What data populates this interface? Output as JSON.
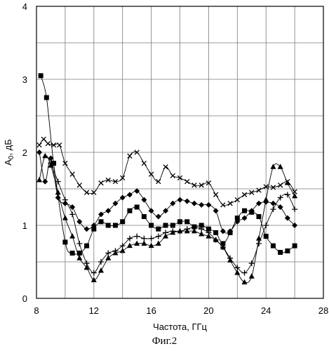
{
  "figure": {
    "caption": "Фиг.2"
  },
  "chart_data": {
    "type": "line",
    "xlabel": "Частота, ГГц",
    "ylabel": {
      "main": "A",
      "sub": "0",
      "rest": ", дБ"
    },
    "xlim": [
      8,
      28
    ],
    "ylim": [
      0,
      4
    ],
    "xticks": [
      8,
      12,
      16,
      20,
      24,
      28
    ],
    "yticks": [
      0,
      1,
      2,
      3,
      4
    ],
    "grid": true,
    "legend": "none",
    "series": [
      {
        "marker": "x",
        "x": [
          8.2,
          8.5,
          8.8,
          9.2,
          9.6,
          10.0,
          10.5,
          11.0,
          11.5,
          12.0,
          12.5,
          13.0,
          13.5,
          14.0,
          14.5,
          15.0,
          15.5,
          16.0,
          16.5,
          17.0,
          17.5,
          18.0,
          18.5,
          19.0,
          19.5,
          20.0,
          20.5,
          21.0,
          21.5,
          22.0,
          22.5,
          23.0,
          23.5,
          24.0,
          24.5,
          25.0,
          25.5,
          26.0
        ],
        "y": [
          2.1,
          2.18,
          2.12,
          2.1,
          2.1,
          1.85,
          1.7,
          1.55,
          1.45,
          1.45,
          1.58,
          1.62,
          1.6,
          1.65,
          1.95,
          2.0,
          1.85,
          1.7,
          1.6,
          1.8,
          1.68,
          1.65,
          1.6,
          1.55,
          1.55,
          1.58,
          1.42,
          1.28,
          1.3,
          1.35,
          1.42,
          1.45,
          1.48,
          1.53,
          1.52,
          1.55,
          1.6,
          1.46
        ]
      },
      {
        "marker": "diamond",
        "x": [
          8.2,
          8.6,
          9.0,
          9.5,
          10.0,
          10.5,
          11.0,
          11.5,
          12.0,
          12.5,
          13.0,
          13.5,
          14.0,
          14.5,
          15.0,
          15.5,
          16.0,
          16.5,
          17.0,
          17.5,
          18.0,
          18.5,
          19.0,
          19.5,
          20.0,
          20.5,
          21.0,
          21.5,
          22.0,
          22.5,
          23.0,
          23.5,
          24.0,
          24.5,
          25.0,
          25.5,
          26.0
        ],
        "y": [
          2.0,
          1.6,
          1.92,
          1.38,
          1.3,
          1.25,
          1.05,
          0.95,
          1.0,
          1.15,
          1.2,
          1.3,
          1.38,
          1.42,
          1.47,
          1.35,
          1.2,
          1.12,
          1.2,
          1.3,
          1.35,
          1.33,
          1.3,
          1.28,
          1.28,
          1.2,
          0.92,
          0.92,
          1.05,
          1.1,
          1.2,
          1.3,
          1.32,
          1.3,
          1.25,
          1.1,
          1.0
        ]
      },
      {
        "marker": "square",
        "x": [
          8.3,
          8.7,
          9.2,
          10.0,
          10.5,
          11.0,
          11.5,
          12.0,
          12.5,
          13.0,
          13.5,
          14.0,
          14.5,
          15.0,
          15.5,
          16.0,
          16.5,
          17.0,
          17.5,
          18.0,
          18.5,
          19.0,
          19.5,
          20.0,
          20.5,
          21.0,
          21.5,
          22.0,
          22.5,
          23.0,
          23.5,
          24.0,
          24.5,
          25.0,
          25.5,
          26.0
        ],
        "y": [
          3.05,
          2.75,
          1.85,
          0.77,
          0.62,
          0.62,
          0.72,
          0.95,
          1.05,
          1.0,
          1.0,
          1.05,
          1.2,
          1.25,
          1.12,
          1.0,
          0.95,
          1.0,
          1.0,
          1.05,
          1.05,
          0.98,
          1.0,
          0.95,
          0.9,
          0.75,
          0.9,
          1.1,
          1.2,
          1.18,
          1.12,
          0.85,
          0.72,
          0.63,
          0.65,
          0.72
        ]
      },
      {
        "marker": "plus",
        "x": [
          9.0,
          9.5,
          10.0,
          10.5,
          11.0,
          11.5,
          12.0,
          12.5,
          13.0,
          13.5,
          14.0,
          14.5,
          15.0,
          15.5,
          16.0,
          16.5,
          17.0,
          17.5,
          18.0,
          18.5,
          19.0,
          19.5,
          20.0,
          20.5,
          21.0,
          21.5,
          22.0,
          22.5,
          23.0,
          23.5,
          24.0,
          24.5,
          25.0,
          25.5,
          26.0
        ],
        "y": [
          1.85,
          1.6,
          1.35,
          1.15,
          0.75,
          0.48,
          0.35,
          0.5,
          0.62,
          0.65,
          0.72,
          0.82,
          0.85,
          0.82,
          0.82,
          0.85,
          0.9,
          0.92,
          0.92,
          0.95,
          0.97,
          0.95,
          0.9,
          0.8,
          0.7,
          0.55,
          0.42,
          0.35,
          0.48,
          0.75,
          1.0,
          1.22,
          1.38,
          1.42,
          1.22
        ]
      },
      {
        "marker": "triangle",
        "x": [
          8.2,
          8.6,
          9.0,
          9.5,
          10.0,
          10.5,
          11.0,
          11.5,
          12.0,
          12.5,
          13.0,
          13.5,
          14.0,
          14.5,
          15.0,
          15.5,
          16.0,
          16.5,
          17.0,
          17.5,
          18.0,
          18.5,
          19.0,
          19.5,
          20.0,
          20.5,
          21.0,
          21.5,
          22.0,
          22.5,
          23.0,
          23.5,
          24.0,
          24.5,
          25.0,
          25.5,
          26.0
        ],
        "y": [
          1.62,
          1.95,
          1.82,
          1.45,
          1.1,
          0.85,
          0.55,
          0.42,
          0.25,
          0.38,
          0.55,
          0.62,
          0.65,
          0.72,
          0.75,
          0.75,
          0.72,
          0.75,
          0.85,
          0.9,
          0.92,
          0.92,
          0.92,
          0.88,
          0.85,
          0.8,
          0.7,
          0.52,
          0.35,
          0.22,
          0.3,
          0.82,
          1.35,
          1.8,
          1.8,
          1.58,
          1.4
        ]
      }
    ]
  }
}
